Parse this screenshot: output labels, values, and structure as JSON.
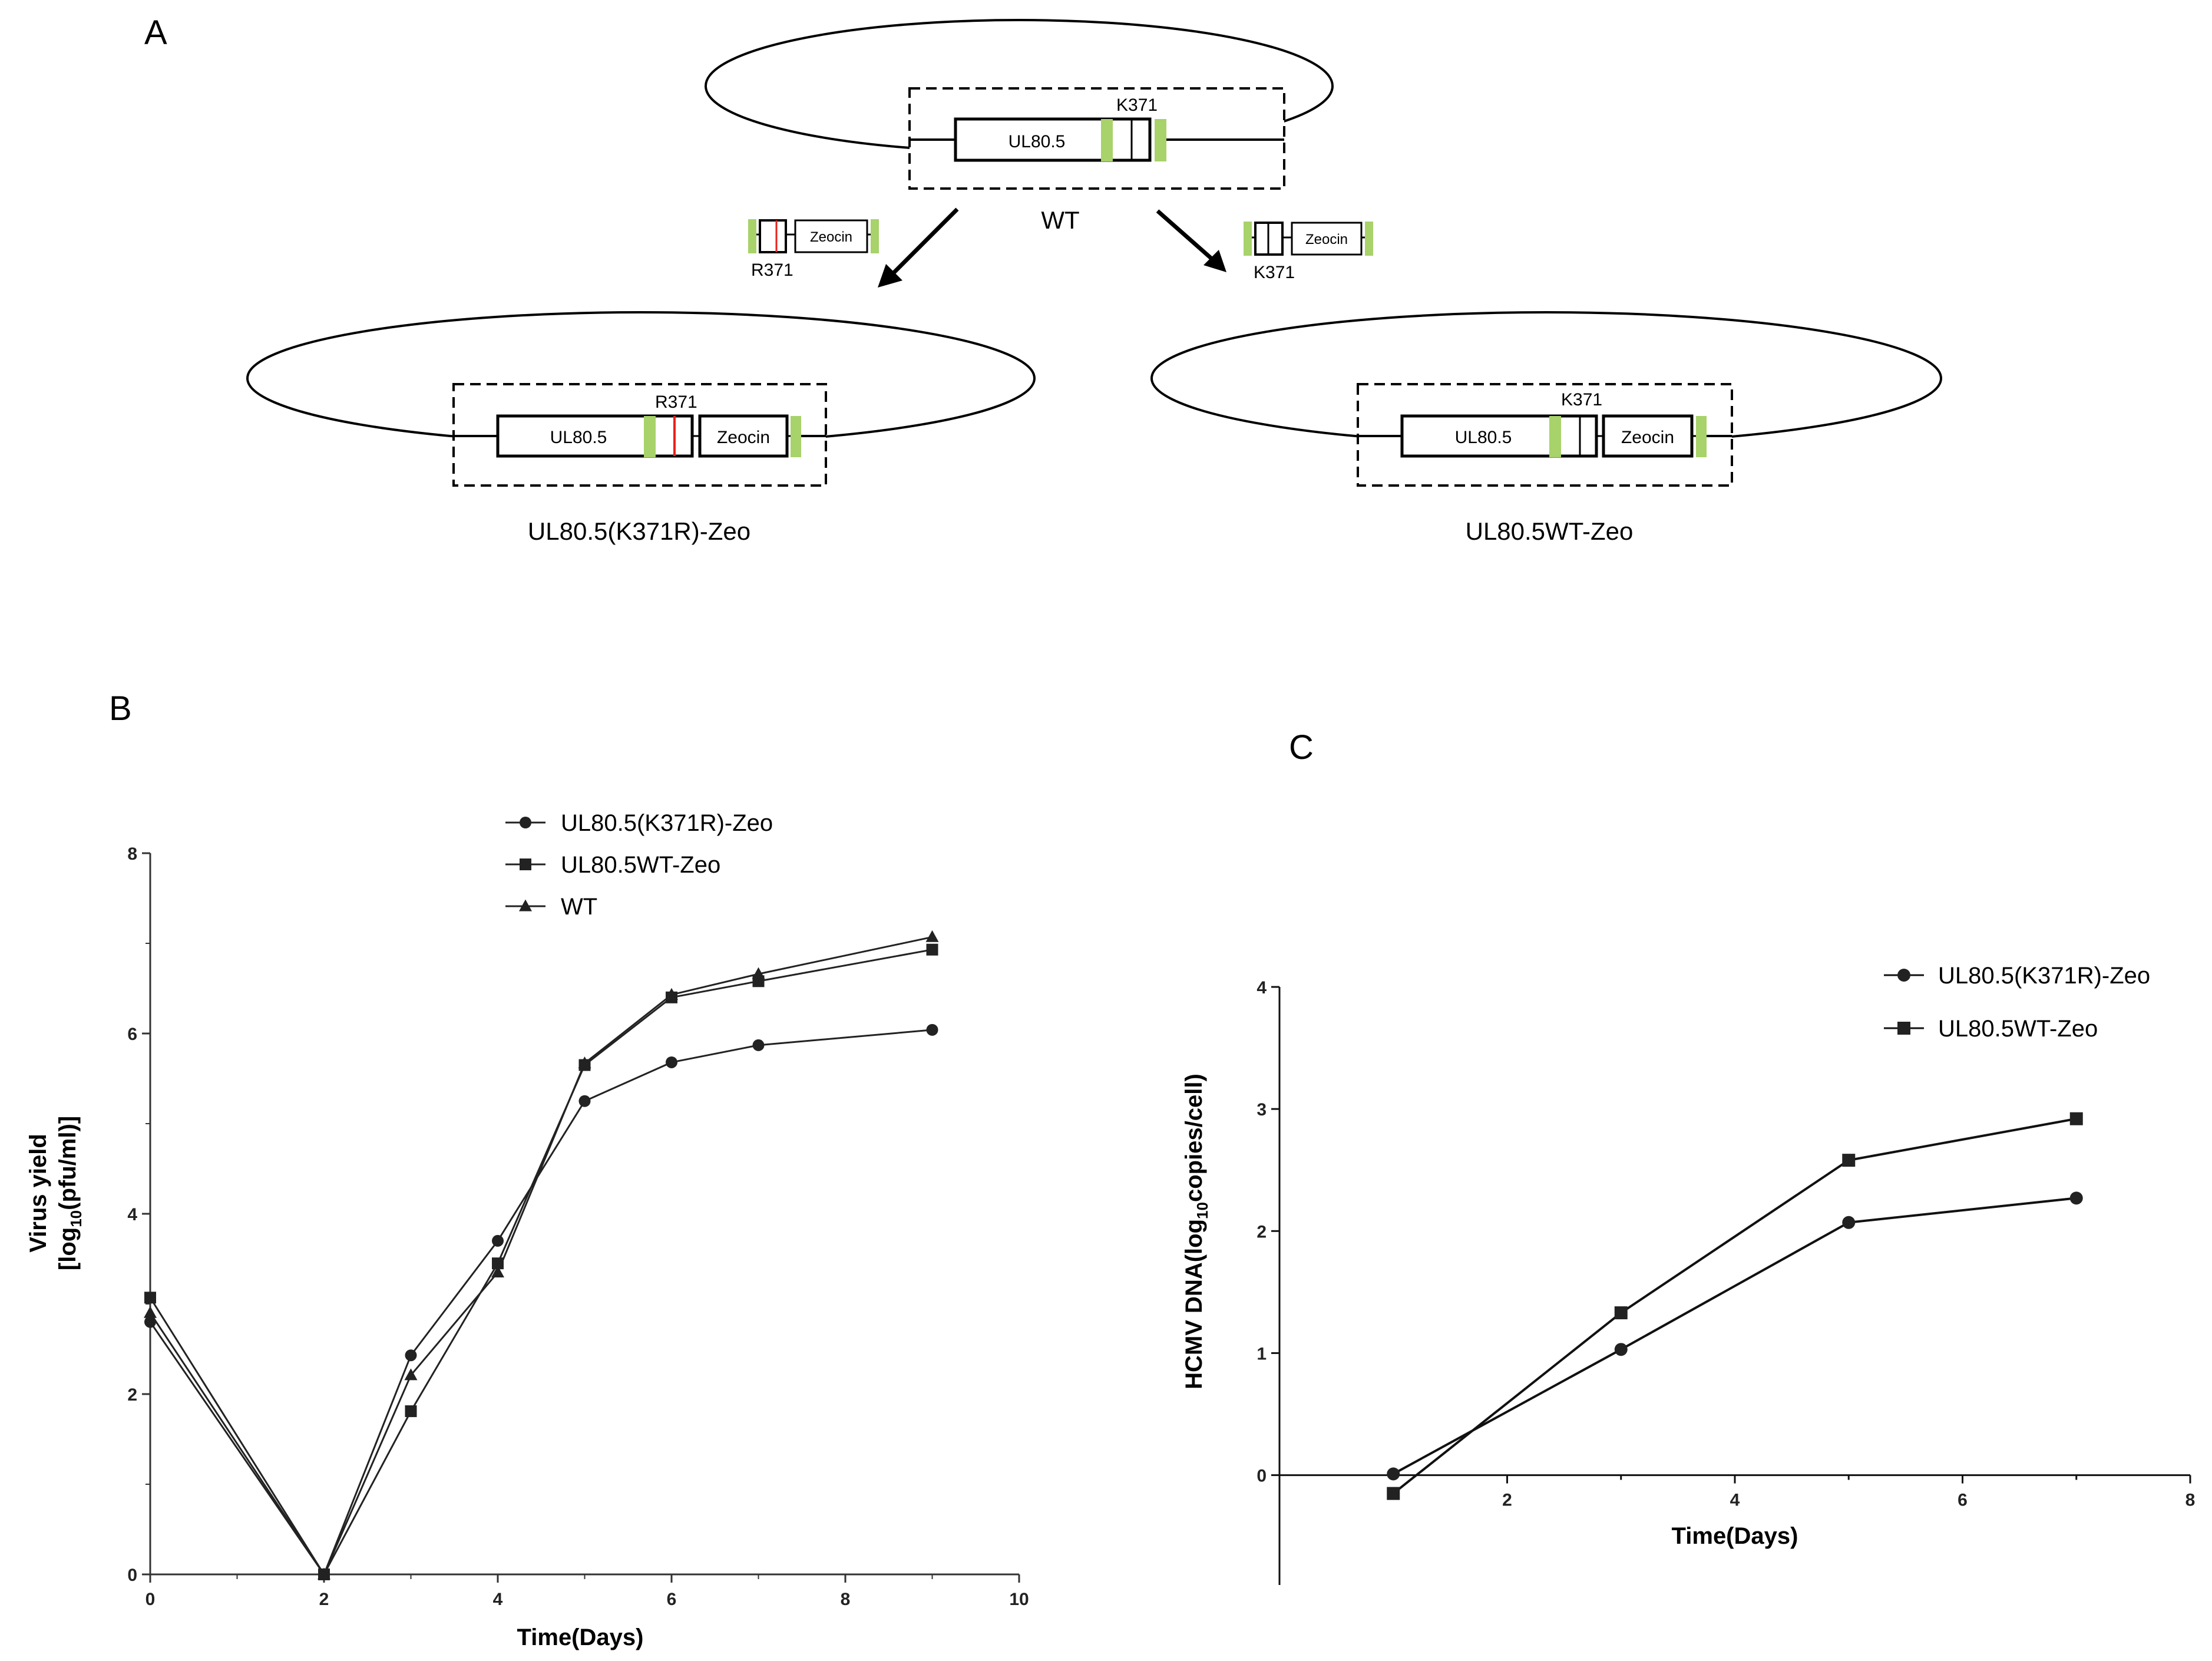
{
  "panels": {
    "a": {
      "letter": "A",
      "wt_label": "WT",
      "gene": "UL80.5",
      "marker": "Zeocin",
      "k371": "K371",
      "r371": "R371",
      "left_construct": "UL80.5(K371R)-Zeo",
      "right_construct": "UL80.5WT-Zeo",
      "colors": {
        "homology_arm": "#a8d26a",
        "mutation": "#e8211c",
        "outline": "#000000"
      }
    },
    "b": {
      "letter": "B",
      "ylabel_line1": "Virus yield",
      "ylabel_line2_pre": "[log",
      "ylabel_line2_sub": "10",
      "ylabel_line2_post": "(pfu/ml)]",
      "xlabel": "Time(Days)",
      "xticks": [
        "0",
        "2",
        "4",
        "6",
        "8",
        "10"
      ],
      "yticks": [
        "0",
        "2",
        "4",
        "6",
        "8"
      ]
    },
    "c": {
      "letter": "C",
      "ylabel_pre": "HCMV DNA(log",
      "ylabel_sub": "10",
      "ylabel_post": "copies/cell)",
      "xlabel": "Time(Days)",
      "xticks": [
        "2",
        "4",
        "6",
        "8"
      ],
      "yticks": [
        "0",
        "1",
        "2",
        "3",
        "4"
      ]
    }
  },
  "chart_data": [
    {
      "type": "line",
      "panel": "B",
      "xlabel": "Time(Days)",
      "ylabel": "Virus yield [log10(pfu/ml)]",
      "xlim": [
        0,
        10
      ],
      "ylim": [
        0,
        8
      ],
      "legend_position": "top-center",
      "series": [
        {
          "name": "UL80.5(K371R)-Zeo",
          "marker": "circle",
          "x": [
            0,
            2,
            3,
            4,
            5,
            6,
            7,
            9
          ],
          "y": [
            2.8,
            0,
            2.43,
            3.7,
            5.25,
            5.68,
            5.87,
            6.04
          ]
        },
        {
          "name": "UL80.5WT-Zeo",
          "marker": "square",
          "x": [
            0,
            2,
            3,
            4,
            5,
            6,
            7,
            9
          ],
          "y": [
            3.07,
            0,
            1.81,
            3.45,
            5.65,
            6.4,
            6.58,
            6.93
          ]
        },
        {
          "name": "WT",
          "marker": "triangle",
          "x": [
            0,
            2,
            3,
            4,
            5,
            6,
            7,
            9
          ],
          "y": [
            2.9,
            0,
            2.21,
            3.35,
            5.67,
            6.43,
            6.66,
            7.07
          ]
        }
      ]
    },
    {
      "type": "line",
      "panel": "C",
      "xlabel": "Time(Days)",
      "ylabel": "HCMV DNA(log10copies/cell)",
      "xlim": [
        0,
        8
      ],
      "ylim": [
        -0.9,
        4
      ],
      "legend_position": "top-right",
      "series": [
        {
          "name": "UL80.5(K371R)-Zeo",
          "marker": "circle",
          "x": [
            1,
            3,
            5,
            7
          ],
          "y": [
            0.01,
            1.03,
            2.07,
            2.27
          ]
        },
        {
          "name": "UL80.5WT-Zeo",
          "marker": "square",
          "x": [
            1,
            3,
            5,
            7
          ],
          "y": [
            -0.15,
            1.33,
            2.58,
            2.92
          ]
        }
      ]
    }
  ]
}
